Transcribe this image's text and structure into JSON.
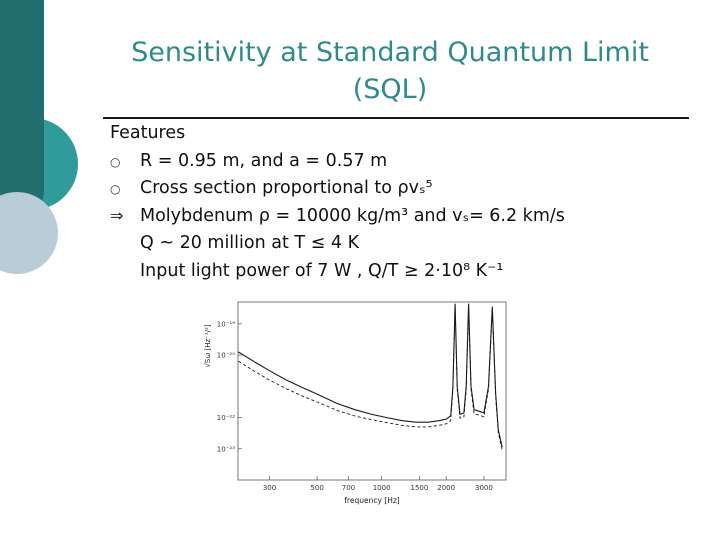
{
  "slide": {
    "title_line1": "Sensitivity at Standard Quantum Limit",
    "title_line2": "(SQL)",
    "features_heading": "Features",
    "bullets": [
      {
        "marker": "○",
        "text": "R = 0.95 m, and a = 0.57 m"
      },
      {
        "marker": "○",
        "text": "Cross section proportional to ρvₛ⁵"
      },
      {
        "marker": "⇒",
        "text": "Molybdenum ρ = 10000 kg/m³ and vₛ= 6.2 km/s"
      },
      {
        "marker": "",
        "text": "Q ~ 20 million at T ≤ 4 K"
      },
      {
        "marker": "",
        "text": "Input light power of 7 W , Q/T ≥ 2·10⁸ K⁻¹"
      }
    ],
    "colors": {
      "title_teal": "#2e8b8b",
      "decoration_dark_teal": "#206f6e",
      "decoration_teal": "#2f9b9a",
      "decoration_pale_blue": "#b9cdd6"
    }
  },
  "chart_data": {
    "type": "line",
    "title": "",
    "xlabel": "frequency  [Hz]",
    "ylabel": "√Sω  [Hz⁻¹/²]",
    "x_scale": "log",
    "y_scale": "log",
    "y_unit": "log10 of spectral sensitivity",
    "x_log_range": [
      2.33,
      3.58
    ],
    "y_log_range": [
      -18.3,
      -24.0
    ],
    "grid": false,
    "legend": "none",
    "x_ticks": [
      {
        "value": 300,
        "label": "300"
      },
      {
        "value": 500,
        "label": "500"
      },
      {
        "value": 700,
        "label": "700"
      },
      {
        "value": 1000,
        "label": "1000"
      },
      {
        "value": 1500,
        "label": "1500"
      },
      {
        "value": 2000,
        "label": "2000"
      },
      {
        "value": 3000,
        "label": "3000"
      }
    ],
    "y_ticks": [
      {
        "value": -19,
        "label": "10⁻¹⁹"
      },
      {
        "value": -20,
        "label": "10⁻²⁰"
      },
      {
        "value": -22,
        "label": "10⁻²²"
      },
      {
        "value": -23,
        "label": "10⁻²³"
      }
    ],
    "series": [
      {
        "name": "sensitivity-solid",
        "style": "solid",
        "color": "#1a1a1a",
        "width": 1.1,
        "dash": "",
        "points": [
          [
            215,
            -19.9
          ],
          [
            260,
            -20.25
          ],
          [
            300,
            -20.5
          ],
          [
            360,
            -20.8
          ],
          [
            430,
            -21.05
          ],
          [
            520,
            -21.3
          ],
          [
            620,
            -21.55
          ],
          [
            750,
            -21.75
          ],
          [
            900,
            -21.9
          ],
          [
            1050,
            -22.0
          ],
          [
            1250,
            -22.1
          ],
          [
            1450,
            -22.15
          ],
          [
            1650,
            -22.15
          ],
          [
            1850,
            -22.1
          ],
          [
            2000,
            -22.05
          ],
          [
            2100,
            -21.95
          ],
          [
            2150,
            -21.0
          ],
          [
            2200,
            -18.35
          ],
          [
            2250,
            -21.0
          ],
          [
            2320,
            -21.9
          ],
          [
            2420,
            -21.85
          ],
          [
            2480,
            -21.0
          ],
          [
            2545,
            -18.35
          ],
          [
            2610,
            -21.0
          ],
          [
            2700,
            -21.75
          ],
          [
            2850,
            -21.8
          ],
          [
            3000,
            -21.85
          ],
          [
            3150,
            -21.0
          ],
          [
            3280,
            -18.45
          ],
          [
            3400,
            -21.2
          ],
          [
            3500,
            -22.4
          ],
          [
            3650,
            -22.95
          ]
        ]
      },
      {
        "name": "sensitivity-dashed",
        "style": "dashed",
        "color": "#1a1a1a",
        "width": 0.9,
        "dash": "3,2.5",
        "points": [
          [
            215,
            -20.2
          ],
          [
            260,
            -20.55
          ],
          [
            300,
            -20.8
          ],
          [
            360,
            -21.08
          ],
          [
            430,
            -21.32
          ],
          [
            520,
            -21.55
          ],
          [
            620,
            -21.77
          ],
          [
            750,
            -21.95
          ],
          [
            900,
            -22.07
          ],
          [
            1050,
            -22.16
          ],
          [
            1250,
            -22.25
          ],
          [
            1450,
            -22.3
          ],
          [
            1650,
            -22.3
          ],
          [
            1850,
            -22.25
          ],
          [
            2000,
            -22.2
          ],
          [
            2100,
            -22.1
          ],
          [
            2150,
            -21.1
          ],
          [
            2200,
            -18.45
          ],
          [
            2250,
            -21.1
          ],
          [
            2320,
            -22.02
          ],
          [
            2420,
            -21.98
          ],
          [
            2480,
            -21.1
          ],
          [
            2545,
            -18.45
          ],
          [
            2610,
            -21.1
          ],
          [
            2700,
            -21.88
          ],
          [
            2850,
            -21.92
          ],
          [
            3000,
            -21.98
          ],
          [
            3150,
            -21.1
          ],
          [
            3280,
            -18.55
          ],
          [
            3400,
            -21.3
          ],
          [
            3500,
            -22.5
          ],
          [
            3650,
            -23.05
          ]
        ]
      }
    ]
  }
}
